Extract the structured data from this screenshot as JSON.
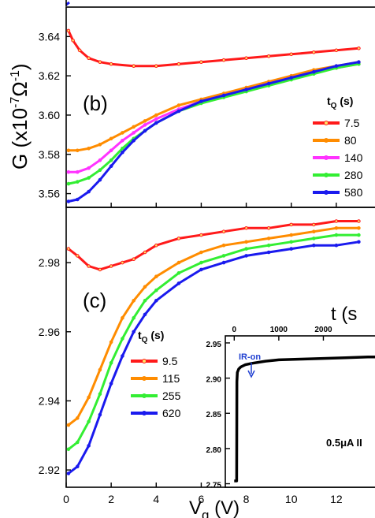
{
  "colors": {
    "red": "#ff1a1a",
    "orange": "#ff8c00",
    "magenta": "#ff33ff",
    "green": "#33ee33",
    "blue": "#1a1aee",
    "ir_arrow": "#1f3fd1",
    "black": "#000000"
  },
  "axis_labels": {
    "x_main": "V",
    "x_sub": "g",
    "x_unit": " (V)",
    "y_main": "G (x10",
    "y_exp": "-7",
    "y_unit": "Ω",
    "y_exp2": "-1",
    "y_close": ")"
  },
  "chart_data": [
    {
      "panel": "(b)",
      "type": "line",
      "xlim": [
        0,
        14
      ],
      "ylim": [
        3.553,
        3.655
      ],
      "xlabel": "",
      "ylabel": "G (x10-7Ω-1)",
      "yticks": [
        3.56,
        3.58,
        3.6,
        3.62,
        3.64
      ],
      "ytick_labels": [
        "3.56",
        "3.58",
        "3.60",
        "3.62",
        "3.64"
      ],
      "legend_title_main": "t",
      "legend_title_sub": "Q",
      "legend_title_unit": " (s)",
      "legend_placement": "right",
      "series": [
        {
          "name": "7.5",
          "color": "red",
          "x": [
            0.1,
            0.3,
            0.6,
            1,
            1.5,
            2,
            3,
            4,
            5,
            6,
            7,
            8,
            9,
            10,
            11,
            12,
            13
          ],
          "y": [
            3.643,
            3.638,
            3.633,
            3.629,
            3.627,
            3.626,
            3.625,
            3.625,
            3.626,
            3.627,
            3.628,
            3.629,
            3.63,
            3.631,
            3.632,
            3.633,
            3.634
          ]
        },
        {
          "name": "80",
          "color": "orange",
          "x": [
            0.1,
            0.5,
            1,
            1.5,
            2,
            2.5,
            3,
            3.5,
            4,
            5,
            6,
            7,
            8,
            9,
            10,
            11,
            12,
            13
          ],
          "y": [
            3.582,
            3.582,
            3.583,
            3.585,
            3.588,
            3.591,
            3.594,
            3.597,
            3.6,
            3.605,
            3.608,
            3.611,
            3.614,
            3.617,
            3.62,
            3.623,
            3.625,
            3.627
          ]
        },
        {
          "name": "140",
          "color": "magenta",
          "x": [
            0.1,
            0.5,
            1,
            1.5,
            2,
            2.5,
            3,
            3.5,
            4,
            5,
            6,
            7,
            8,
            9,
            10,
            11,
            12,
            13
          ],
          "y": [
            3.571,
            3.571,
            3.573,
            3.577,
            3.582,
            3.587,
            3.591,
            3.595,
            3.598,
            3.603,
            3.607,
            3.61,
            3.613,
            3.616,
            3.619,
            3.622,
            3.624,
            3.626
          ]
        },
        {
          "name": "280",
          "color": "green",
          "x": [
            0.1,
            0.5,
            1,
            1.5,
            2,
            2.5,
            3,
            3.5,
            4,
            5,
            6,
            7,
            8,
            9,
            10,
            11,
            12,
            13
          ],
          "y": [
            3.565,
            3.566,
            3.568,
            3.572,
            3.577,
            3.583,
            3.588,
            3.592,
            3.596,
            3.602,
            3.606,
            3.609,
            3.612,
            3.615,
            3.618,
            3.621,
            3.624,
            3.626
          ]
        },
        {
          "name": "580",
          "color": "blue",
          "x": [
            0.1,
            0.5,
            1,
            1.5,
            2,
            2.5,
            3,
            3.5,
            4,
            5,
            6,
            7,
            8,
            9,
            10,
            11,
            12,
            13
          ],
          "y": [
            3.556,
            3.557,
            3.561,
            3.567,
            3.574,
            3.581,
            3.587,
            3.592,
            3.596,
            3.602,
            3.607,
            3.61,
            3.613,
            3.616,
            3.619,
            3.622,
            3.625,
            3.627
          ]
        }
      ]
    },
    {
      "panel": "(c)",
      "type": "line",
      "xlim": [
        0,
        14
      ],
      "ylim": [
        2.915,
        2.996
      ],
      "xlabel": "Vg (V)",
      "ylabel": "",
      "yticks": [
        2.92,
        2.94,
        2.96,
        2.98
      ],
      "ytick_labels": [
        "2.92",
        "2.94",
        "2.96",
        "2.98"
      ],
      "xticks": [
        0,
        2,
        4,
        6,
        8,
        10,
        12
      ],
      "xtick_labels": [
        "0",
        "2",
        "4",
        "6",
        "8",
        "10",
        "12"
      ],
      "legend_title_main": "t",
      "legend_title_sub": "Q",
      "legend_title_unit": " (s)",
      "legend_placement": "left",
      "series": [
        {
          "name": "9.5",
          "color": "red",
          "x": [
            0.1,
            0.5,
            1,
            1.5,
            2,
            2.5,
            3,
            3.5,
            4,
            5,
            6,
            7,
            8,
            9,
            10,
            11,
            12,
            13
          ],
          "y": [
            2.984,
            2.982,
            2.979,
            2.978,
            2.979,
            2.98,
            2.981,
            2.983,
            2.985,
            2.987,
            2.988,
            2.989,
            2.99,
            2.99,
            2.991,
            2.991,
            2.992,
            2.992
          ]
        },
        {
          "name": "115",
          "color": "orange",
          "x": [
            0.1,
            0.5,
            1,
            1.5,
            2,
            2.5,
            3,
            3.5,
            4,
            5,
            6,
            7,
            8,
            9,
            10,
            11,
            12,
            13
          ],
          "y": [
            2.933,
            2.935,
            2.941,
            2.949,
            2.957,
            2.964,
            2.969,
            2.973,
            2.976,
            2.98,
            2.983,
            2.985,
            2.986,
            2.987,
            2.988,
            2.989,
            2.99,
            2.99
          ]
        },
        {
          "name": "255",
          "color": "green",
          "x": [
            0.1,
            0.5,
            1,
            1.5,
            2,
            2.5,
            3,
            3.5,
            4,
            5,
            6,
            7,
            8,
            9,
            10,
            11,
            12,
            13
          ],
          "y": [
            2.926,
            2.928,
            2.934,
            2.942,
            2.951,
            2.958,
            2.964,
            2.969,
            2.972,
            2.977,
            2.98,
            2.982,
            2.984,
            2.985,
            2.986,
            2.987,
            2.988,
            2.988
          ]
        },
        {
          "name": "620",
          "color": "blue",
          "x": [
            0.1,
            0.5,
            1,
            1.5,
            2,
            2.5,
            3,
            3.5,
            4,
            5,
            6,
            7,
            8,
            9,
            10,
            11,
            12,
            13
          ],
          "y": [
            2.919,
            2.921,
            2.927,
            2.936,
            2.945,
            2.953,
            2.96,
            2.965,
            2.969,
            2.974,
            2.978,
            2.98,
            2.982,
            2.983,
            2.984,
            2.985,
            2.985,
            2.986
          ]
        }
      ]
    },
    {
      "panel": "inset",
      "type": "line",
      "xlim": [
        -200,
        3300
      ],
      "ylim": [
        2.745,
        2.96
      ],
      "xlabel": "t (s",
      "ylabel": "",
      "xticks": [
        0,
        1000,
        2000
      ],
      "xtick_labels": [
        "0",
        "1000",
        "2000"
      ],
      "yticks": [
        2.75,
        2.8,
        2.85,
        2.9,
        2.95
      ],
      "ytick_labels": [
        "2.75",
        "2.80",
        "2.85",
        "2.90",
        "2.95"
      ],
      "annotation_ir": "IR-on",
      "annotation_current": "0.5μA II",
      "series": [
        {
          "color": "black",
          "x": [
            0,
            55,
            60,
            70,
            100,
            150,
            250,
            400,
            700,
            1000,
            1500,
            2000,
            2500,
            3000,
            3300
          ],
          "y": [
            2.754,
            2.754,
            2.895,
            2.908,
            2.913,
            2.916,
            2.919,
            2.921,
            2.924,
            2.926,
            2.927,
            2.928,
            2.929,
            2.93,
            2.93
          ]
        }
      ]
    }
  ]
}
